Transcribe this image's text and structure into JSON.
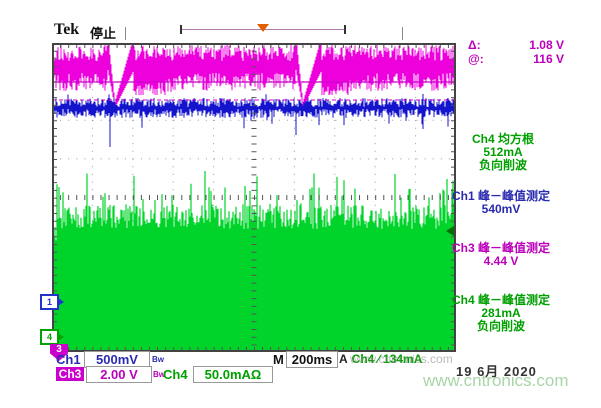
{
  "header": {
    "brand": "Tek",
    "status": "停止"
  },
  "record_view": {
    "trigger_marker": "trigger-position"
  },
  "cursors": {
    "delta_label": "Δ:",
    "delta_value": "1.08 V",
    "at_label": "@:",
    "at_value": "116 V"
  },
  "measurements": {
    "ch4_rms": {
      "title": "Ch4 均方根",
      "value": "512mA",
      "note": "负向削波"
    },
    "ch1_pp": {
      "title": "Ch1 峰－峰值测定",
      "value": "540mV"
    },
    "ch3_pp": {
      "title": "Ch3 峰－峰值测定",
      "value": "4.44 V"
    },
    "ch4_pp": {
      "title": "Ch4 峰－峰值测定",
      "value": "281mA",
      "note": "负向削波"
    }
  },
  "channels": {
    "ch1": {
      "label": "Ch1",
      "scale": "500mV",
      "bw": "Bw",
      "marker": "1"
    },
    "ch3": {
      "label": "Ch3",
      "scale": "2.00 V",
      "bw": "Bw",
      "marker": "3"
    },
    "ch4": {
      "label": "Ch4",
      "scale": "50.0mAΩ",
      "marker": "4"
    }
  },
  "timebase": {
    "label": "M",
    "value": "200ms"
  },
  "trigger": {
    "system": "A",
    "source": "Ch4 ∕ 134mA"
  },
  "footer": {
    "date": "19 6月 2020",
    "watermark": "www.cntronics.com"
  },
  "waveforms": [
    {
      "channel": "Ch3",
      "color_key": "magenta",
      "description": "noisy AC-line band, top of screen, periodic dropouts"
    },
    {
      "channel": "Ch1",
      "color_key": "blue",
      "description": "dense ripple band with occasional negative spikes"
    },
    {
      "channel": "Ch4",
      "color_key": "green",
      "description": "dense current noise filling lower half of graticule"
    }
  ],
  "colors": {
    "magenta": "#cc00cc",
    "magenta-text": "#bb00bb",
    "magenta-trace": "#ee00dd",
    "blue-text": "#2a2ab0",
    "blue-trace": "#1414cc",
    "green-text": "#00a000",
    "green-trace": "#00d42a",
    "orange": "#e06000",
    "grid": "#9a9a9a",
    "tick": "#555555",
    "border": "#444444"
  }
}
